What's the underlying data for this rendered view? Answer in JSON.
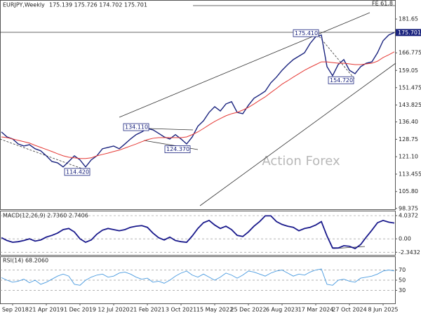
{
  "chart_data": [
    {
      "type": "line",
      "title": "EURJPY,Weekly",
      "subtitle": "175.139 175.726 174.702 175.701",
      "categories": [
        null,
        null,
        "9 Sep 2018",
        null,
        null,
        null,
        null,
        null,
        "21 Apr 2019",
        null,
        null,
        null,
        null,
        null,
        "1 Dec 2019",
        null,
        null,
        null,
        null,
        null,
        "12 Jul 2020",
        null,
        null,
        null,
        null,
        null,
        "21 Feb 2021",
        null,
        null,
        null,
        null,
        null,
        "3 Oct 2021",
        null,
        null,
        null,
        null,
        null,
        "15 May 2022",
        null,
        null,
        null,
        null,
        null,
        "25 Dec 2022",
        null,
        null,
        null,
        null,
        null,
        "6 Aug 2023",
        null,
        null,
        null,
        null,
        null,
        "17 Mar 2024",
        null,
        null,
        null,
        null,
        null,
        "27 Oct 2024",
        null,
        null,
        null,
        null,
        null,
        "8 Jun 2025",
        null,
        null
      ],
      "series": [
        {
          "name": "EURJPY",
          "color": "#1a237e",
          "width": 1.4,
          "values": [
            132.0,
            129.8,
            128.9,
            126.7,
            125.8,
            126.4,
            124.6,
            123.7,
            121.5,
            119.0,
            118.4,
            116.6,
            119.0,
            121.5,
            119.7,
            116.6,
            119.7,
            121.5,
            124.6,
            125.2,
            125.8,
            124.6,
            126.7,
            128.9,
            130.8,
            132.0,
            133.5,
            132.9,
            131.4,
            129.8,
            128.9,
            130.8,
            128.9,
            126.7,
            129.8,
            134.5,
            136.9,
            140.6,
            143.1,
            141.2,
            144.3,
            145.3,
            140.6,
            140.0,
            143.7,
            146.8,
            148.3,
            149.9,
            153.6,
            156.1,
            159.1,
            161.6,
            163.8,
            165.3,
            166.8,
            170.9,
            173.9,
            174.6,
            160.7,
            156.7,
            161.6,
            163.8,
            159.1,
            157.6,
            160.7,
            162.2,
            162.8,
            166.8,
            172.1,
            174.6,
            175.701
          ]
        },
        {
          "name": "MA",
          "color": "#e53935",
          "width": 1,
          "values": [
            129.8,
            129.5,
            128.9,
            128.3,
            127.7,
            127.1,
            126.1,
            125.2,
            124.3,
            123.4,
            122.4,
            121.5,
            120.9,
            120.6,
            120.3,
            120.3,
            120.6,
            121.5,
            122.1,
            122.7,
            123.4,
            124.0,
            124.9,
            125.8,
            126.7,
            127.7,
            128.6,
            129.2,
            129.5,
            129.5,
            129.5,
            129.5,
            129.5,
            129.8,
            130.8,
            132.0,
            133.5,
            135.1,
            136.6,
            137.9,
            139.1,
            140.0,
            140.6,
            141.6,
            142.8,
            144.3,
            145.9,
            147.4,
            149.3,
            151.1,
            153.0,
            154.5,
            156.1,
            157.6,
            159.1,
            160.4,
            161.6,
            162.8,
            162.8,
            162.5,
            162.2,
            162.2,
            161.9,
            161.6,
            161.6,
            161.9,
            162.2,
            163.1,
            164.7,
            165.9,
            167.2
          ]
        }
      ],
      "ylim": [
        98,
        190
      ],
      "yticks": [
        181.65,
        166.775,
        159.05,
        151.475,
        143.825,
        {
          "value": 136.4,
          "label": "136.40"
        },
        128.75,
        {
          "value": 121.1,
          "label": "121.10"
        },
        113.455,
        {
          "value": 105.8,
          "label": "105.80"
        },
        98.375
      ],
      "grid": false,
      "annotations": [
        {
          "value": 175.41,
          "label": "175.410"
        },
        {
          "value": 134.11,
          "label": "134.110"
        },
        {
          "value": 124.37,
          "label": "124.370"
        },
        {
          "value": 114.42,
          "label": "114.420"
        },
        {
          "value": 154.72,
          "label": "154.720"
        }
      ],
      "fe_label": "FE 61.8",
      "watermark": "Action Forex"
    },
    {
      "type": "line",
      "title": "MACD(12,26,9) 2.7360 2.7406",
      "series": [
        {
          "name": "MACD",
          "color": "#1a1a8c",
          "width": 1.8,
          "values": [
            0.2,
            -0.3,
            -0.6,
            -0.5,
            -0.3,
            0,
            -0.4,
            -0.2,
            0.3,
            0.6,
            1.0,
            1.6,
            1.8,
            1.2,
            0.0,
            -0.6,
            -0.2,
            0.8,
            1.5,
            1.8,
            1.6,
            1.4,
            1.6,
            2.0,
            2.2,
            2.3,
            2.0,
            1.0,
            0.2,
            -0.2,
            0.3,
            -0.3,
            -0.5,
            -0.6,
            0.5,
            1.8,
            2.8,
            3.2,
            2.4,
            1.8,
            2.2,
            1.6,
            0.6,
            0.4,
            1.2,
            2.2,
            3.0,
            4.0,
            4.0,
            3.0,
            2.5,
            2.2,
            2.0,
            1.4,
            1.8,
            2.0,
            2.4,
            3.0,
            0.5,
            -1.6,
            -1.6,
            -1.2,
            -1.3,
            -1.7,
            -1.0,
            0.3,
            1.5,
            2.8,
            3.2,
            2.9,
            2.74
          ]
        }
      ],
      "ylim": [
        -2.8,
        4.9
      ],
      "yticks": [
        4.0372,
        {
          "value": 0,
          "label": "0.00"
        },
        -2.3432
      ],
      "grid": true
    },
    {
      "type": "line",
      "title": "RSI(14) 68.2060",
      "series": [
        {
          "name": "RSI",
          "color": "#4a9be0",
          "width": 0.9,
          "values": [
            55,
            50,
            46,
            48,
            52,
            45,
            50,
            42,
            46,
            52,
            58,
            62,
            58,
            42,
            40,
            50,
            56,
            60,
            62,
            56,
            58,
            64,
            66,
            62,
            56,
            52,
            54,
            46,
            48,
            44,
            50,
            58,
            64,
            68,
            60,
            56,
            62,
            56,
            50,
            56,
            64,
            60,
            54,
            60,
            68,
            66,
            62,
            58,
            64,
            68,
            70,
            64,
            58,
            62,
            60,
            66,
            70,
            72,
            42,
            40,
            50,
            52,
            48,
            46,
            54,
            56,
            58,
            62,
            68,
            70,
            68.206
          ]
        }
      ],
      "ylim": [
        4.5,
        96.9
      ],
      "yticks": [
        70,
        50,
        30
      ],
      "grid": true
    }
  ]
}
